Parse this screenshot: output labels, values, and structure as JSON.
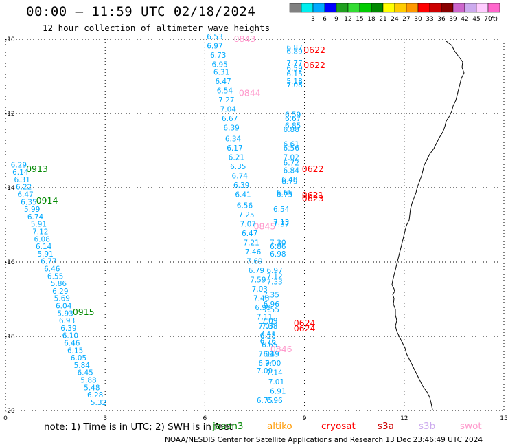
{
  "header": {
    "title": "00:00 — 11:59 UTC 02/18/2024",
    "subtitle": "12 hour collection of altimeter wave heights"
  },
  "colorbar": {
    "unit": "(ft)",
    "bins": [
      {
        "color": "#808080",
        "label": ""
      },
      {
        "color": "#00eeee",
        "label": "3"
      },
      {
        "color": "#00aaff",
        "label": "6"
      },
      {
        "color": "#0000ff",
        "label": "9"
      },
      {
        "color": "#1fa01f",
        "label": "12"
      },
      {
        "color": "#33dd33",
        "label": "15"
      },
      {
        "color": "#00cc00",
        "label": "18"
      },
      {
        "color": "#008800",
        "label": "21"
      },
      {
        "color": "#ffff00",
        "label": "24"
      },
      {
        "color": "#ffcc00",
        "label": "27"
      },
      {
        "color": "#ff9900",
        "label": "30"
      },
      {
        "color": "#ff0000",
        "label": "33"
      },
      {
        "color": "#cc0000",
        "label": "36"
      },
      {
        "color": "#880000",
        "label": "39"
      },
      {
        "color": "#cc66cc",
        "label": "42"
      },
      {
        "color": "#ccaaee",
        "label": "45"
      },
      {
        "color": "#ffccff",
        "label": "70"
      },
      {
        "color": "#ff66cc",
        "label": ""
      }
    ]
  },
  "note": "note: 1) Time is in UTC; 2) SWH is in feet",
  "satellites": [
    {
      "name": "jason3",
      "color": "#008800"
    },
    {
      "name": "altiko",
      "color": "#ff9900"
    },
    {
      "name": "cryosat",
      "color": "#ff0000"
    },
    {
      "name": "s3a",
      "color": "#cc0000"
    },
    {
      "name": "s3b",
      "color": "#ccaaee"
    },
    {
      "name": "swot",
      "color": "#ff99cc"
    }
  ],
  "footer": "NOAA/NESDIS Center for Satellite Applications and Research    13 Dec 23:46:49 UTC 2024",
  "chart_data": {
    "type": "scatter",
    "xlim": [
      0,
      15
    ],
    "ylim": [
      -20,
      -10
    ],
    "x_ticks": [
      "0",
      "3",
      "6",
      "9",
      "12",
      "15"
    ],
    "y_ticks": [
      "-10",
      "-12",
      "-14",
      "-16",
      "-18",
      "-20"
    ],
    "grid": true,
    "value_color": "#00aaff",
    "series": [
      {
        "name": "jason3",
        "color": "#008800",
        "points": [
          {
            "x": 0.4,
            "y": -13.45,
            "v": "6.29"
          },
          {
            "x": 0.45,
            "y": -13.65,
            "v": "6.14"
          },
          {
            "x": 0.5,
            "y": -13.85,
            "v": "6.31"
          },
          {
            "x": 0.55,
            "y": -14.05,
            "v": "6.22"
          },
          {
            "x": 0.6,
            "y": -14.25,
            "v": "6.47"
          },
          {
            "x": 0.7,
            "y": -14.45,
            "v": "6.35"
          },
          {
            "x": 0.8,
            "y": -14.65,
            "v": "5.99"
          },
          {
            "x": 0.9,
            "y": -14.85,
            "v": "6.74"
          },
          {
            "x": 1.0,
            "y": -15.05,
            "v": "5.91"
          },
          {
            "x": 1.05,
            "y": -15.25,
            "v": "7.12"
          },
          {
            "x": 1.1,
            "y": -15.45,
            "v": "6.08"
          },
          {
            "x": 1.15,
            "y": -15.65,
            "v": "6.14"
          },
          {
            "x": 1.2,
            "y": -15.85,
            "v": "5.91"
          },
          {
            "x": 1.3,
            "y": -16.05,
            "v": "6.77"
          },
          {
            "x": 1.4,
            "y": -16.25,
            "v": "6.46"
          },
          {
            "x": 1.5,
            "y": -16.45,
            "v": "6.55"
          },
          {
            "x": 1.6,
            "y": -16.65,
            "v": "5.86"
          },
          {
            "x": 1.65,
            "y": -16.85,
            "v": "6.29"
          },
          {
            "x": 1.7,
            "y": -17.05,
            "v": "5.69"
          },
          {
            "x": 1.75,
            "y": -17.25,
            "v": "6.04"
          },
          {
            "x": 1.8,
            "y": -17.45,
            "v": "5.93"
          },
          {
            "x": 1.85,
            "y": -17.65,
            "v": "6.93"
          },
          {
            "x": 1.9,
            "y": -17.85,
            "v": "6.39"
          },
          {
            "x": 1.95,
            "y": -18.05,
            "v": "6.10"
          },
          {
            "x": 2.0,
            "y": -18.25,
            "v": "6.46"
          },
          {
            "x": 2.1,
            "y": -18.45,
            "v": "6.15"
          },
          {
            "x": 2.2,
            "y": -18.65,
            "v": "6.05"
          },
          {
            "x": 2.3,
            "y": -18.85,
            "v": "5.84"
          },
          {
            "x": 2.4,
            "y": -19.05,
            "v": "6.45"
          },
          {
            "x": 2.5,
            "y": -19.25,
            "v": "5.88"
          },
          {
            "x": 2.6,
            "y": -19.45,
            "v": "5.48"
          },
          {
            "x": 2.7,
            "y": -19.65,
            "v": "6.28"
          },
          {
            "x": 2.8,
            "y": -19.85,
            "v": "5.32"
          }
        ],
        "time_labels": [
          {
            "x": 0.95,
            "y": -13.5,
            "t": "0913"
          },
          {
            "x": 1.25,
            "y": -14.35,
            "t": "0914"
          },
          {
            "x": 2.35,
            "y": -17.35,
            "t": "0915"
          }
        ]
      },
      {
        "name": "swot",
        "color": "#ff99cc",
        "points": [
          {
            "x": 6.3,
            "y": -10.0,
            "v": "6.53"
          },
          {
            "x": 6.3,
            "y": -10.25,
            "v": "6.97"
          },
          {
            "x": 6.4,
            "y": -10.5,
            "v": "6.73"
          },
          {
            "x": 6.45,
            "y": -10.75,
            "v": "6.95"
          },
          {
            "x": 6.5,
            "y": -10.95,
            "v": "6.31"
          },
          {
            "x": 6.55,
            "y": -11.2,
            "v": "6.47"
          },
          {
            "x": 6.6,
            "y": -11.45,
            "v": "6.54"
          },
          {
            "x": 6.65,
            "y": -11.7,
            "v": "7.27"
          },
          {
            "x": 6.7,
            "y": -11.95,
            "v": "7.04"
          },
          {
            "x": 6.75,
            "y": -12.2,
            "v": "6.67"
          },
          {
            "x": 6.8,
            "y": -12.45,
            "v": "6.39"
          },
          {
            "x": 6.85,
            "y": -12.75,
            "v": "6.34"
          },
          {
            "x": 6.9,
            "y": -13.0,
            "v": "6.17"
          },
          {
            "x": 6.95,
            "y": -13.25,
            "v": "6.21"
          },
          {
            "x": 7.0,
            "y": -13.5,
            "v": "6.35"
          },
          {
            "x": 7.05,
            "y": -13.75,
            "v": "6.74"
          },
          {
            "x": 7.1,
            "y": -14.0,
            "v": "6.39"
          },
          {
            "x": 7.15,
            "y": -14.25,
            "v": "6.41"
          },
          {
            "x": 7.2,
            "y": -14.55,
            "v": "6.56"
          },
          {
            "x": 7.25,
            "y": -14.8,
            "v": "7.25"
          },
          {
            "x": 7.3,
            "y": -15.05,
            "v": "7.07"
          },
          {
            "x": 7.35,
            "y": -15.3,
            "v": "6.47"
          },
          {
            "x": 7.4,
            "y": -15.55,
            "v": "7.21"
          },
          {
            "x": 7.45,
            "y": -15.8,
            "v": "7.46"
          },
          {
            "x": 7.5,
            "y": -16.05,
            "v": "7.69"
          },
          {
            "x": 7.55,
            "y": -16.3,
            "v": "6.79"
          },
          {
            "x": 7.6,
            "y": -16.55,
            "v": "7.59"
          },
          {
            "x": 7.65,
            "y": -16.8,
            "v": "7.03"
          },
          {
            "x": 7.7,
            "y": -17.05,
            "v": "7.46"
          },
          {
            "x": 7.75,
            "y": -17.3,
            "v": "6.99"
          },
          {
            "x": 7.8,
            "y": -17.55,
            "v": "7.11"
          },
          {
            "x": 7.85,
            "y": -17.8,
            "v": "7.07"
          },
          {
            "x": 7.9,
            "y": -18.05,
            "v": "6.55"
          },
          {
            "x": 7.95,
            "y": -18.3,
            "v": "6.65"
          },
          {
            "x": 8.0,
            "y": -18.55,
            "v": "6.49"
          },
          {
            "x": 8.05,
            "y": -18.8,
            "v": "7.00"
          },
          {
            "x": 8.1,
            "y": -19.05,
            "v": "7.14"
          },
          {
            "x": 8.15,
            "y": -19.3,
            "v": "7.01"
          },
          {
            "x": 8.2,
            "y": -19.55,
            "v": "6.91"
          },
          {
            "x": 8.1,
            "y": -19.8,
            "v": "6.96"
          }
        ],
        "time_labels": [
          {
            "x": 7.2,
            "y": -10.0,
            "t": "0843"
          },
          {
            "x": 7.35,
            "y": -11.45,
            "t": "0844"
          },
          {
            "x": 7.8,
            "y": -15.05,
            "t": "0845"
          },
          {
            "x": 8.3,
            "y": -18.35,
            "t": "0846"
          }
        ]
      },
      {
        "name": "cryosat",
        "color": "#ff0000",
        "points": [
          {
            "x": 8.7,
            "y": -10.3,
            "v": "6.87"
          },
          {
            "x": 8.7,
            "y": -10.4,
            "v": "6.89"
          },
          {
            "x": 8.7,
            "y": -10.7,
            "v": "7.77"
          },
          {
            "x": 8.7,
            "y": -10.85,
            "v": "6.59"
          },
          {
            "x": 8.7,
            "y": -11.0,
            "v": "6.15"
          },
          {
            "x": 8.7,
            "y": -11.2,
            "v": "5.18"
          },
          {
            "x": 8.7,
            "y": -11.3,
            "v": "7.08"
          },
          {
            "x": 8.65,
            "y": -12.1,
            "v": "6.59"
          },
          {
            "x": 8.65,
            "y": -12.2,
            "v": "6.67"
          },
          {
            "x": 8.65,
            "y": -12.4,
            "v": "6.85"
          },
          {
            "x": 8.6,
            "y": -12.5,
            "v": "6.88"
          },
          {
            "x": 8.6,
            "y": -12.9,
            "v": "6.61"
          },
          {
            "x": 8.6,
            "y": -13.0,
            "v": "6.56"
          },
          {
            "x": 8.6,
            "y": -13.25,
            "v": "7.02"
          },
          {
            "x": 8.6,
            "y": -13.4,
            "v": "6.72"
          },
          {
            "x": 8.6,
            "y": -13.6,
            "v": "6.84"
          },
          {
            "x": 8.55,
            "y": -13.85,
            "v": "6.48"
          },
          {
            "x": 8.55,
            "y": -13.9,
            "v": "6.79"
          },
          {
            "x": 8.4,
            "y": -14.2,
            "v": "6.65"
          },
          {
            "x": 8.4,
            "y": -14.25,
            "v": "6.75"
          },
          {
            "x": 8.3,
            "y": -14.65,
            "v": "6.54"
          },
          {
            "x": 8.3,
            "y": -15.0,
            "v": "7.13"
          },
          {
            "x": 8.3,
            "y": -15.05,
            "v": "7.37"
          },
          {
            "x": 8.2,
            "y": -15.55,
            "v": "7.30"
          },
          {
            "x": 8.2,
            "y": -15.65,
            "v": "6.86"
          },
          {
            "x": 8.2,
            "y": -15.85,
            "v": "6.98"
          },
          {
            "x": 8.1,
            "y": -16.3,
            "v": "6.97"
          },
          {
            "x": 8.1,
            "y": -16.45,
            "v": "7.12"
          },
          {
            "x": 8.1,
            "y": -16.6,
            "v": "7.33"
          },
          {
            "x": 8.0,
            "y": -16.95,
            "v": "7.35"
          },
          {
            "x": 8.0,
            "y": -17.2,
            "v": "6.96"
          },
          {
            "x": 8.0,
            "y": -17.35,
            "v": "7.55"
          },
          {
            "x": 7.95,
            "y": -17.65,
            "v": "7.09"
          },
          {
            "x": 7.95,
            "y": -17.8,
            "v": "7.38"
          },
          {
            "x": 7.9,
            "y": -18.0,
            "v": "7.41"
          },
          {
            "x": 7.9,
            "y": -18.2,
            "v": "6.76"
          },
          {
            "x": 7.85,
            "y": -18.55,
            "v": "7.01"
          },
          {
            "x": 7.85,
            "y": -18.8,
            "v": "6.94"
          },
          {
            "x": 7.8,
            "y": -19.0,
            "v": "7.09"
          },
          {
            "x": 7.8,
            "y": -19.8,
            "v": "6.75"
          }
        ],
        "time_labels": [
          {
            "x": 9.3,
            "y": -10.3,
            "t": "0622"
          },
          {
            "x": 9.3,
            "y": -10.7,
            "t": "0622"
          },
          {
            "x": 9.25,
            "y": -13.5,
            "t": "0622"
          },
          {
            "x": 9.25,
            "y": -14.2,
            "t": "0621"
          },
          {
            "x": 9.25,
            "y": -14.3,
            "t": "0623"
          },
          {
            "x": 9.0,
            "y": -17.65,
            "t": "0624"
          },
          {
            "x": 9.0,
            "y": -17.8,
            "t": "0624"
          }
        ]
      }
    ]
  }
}
